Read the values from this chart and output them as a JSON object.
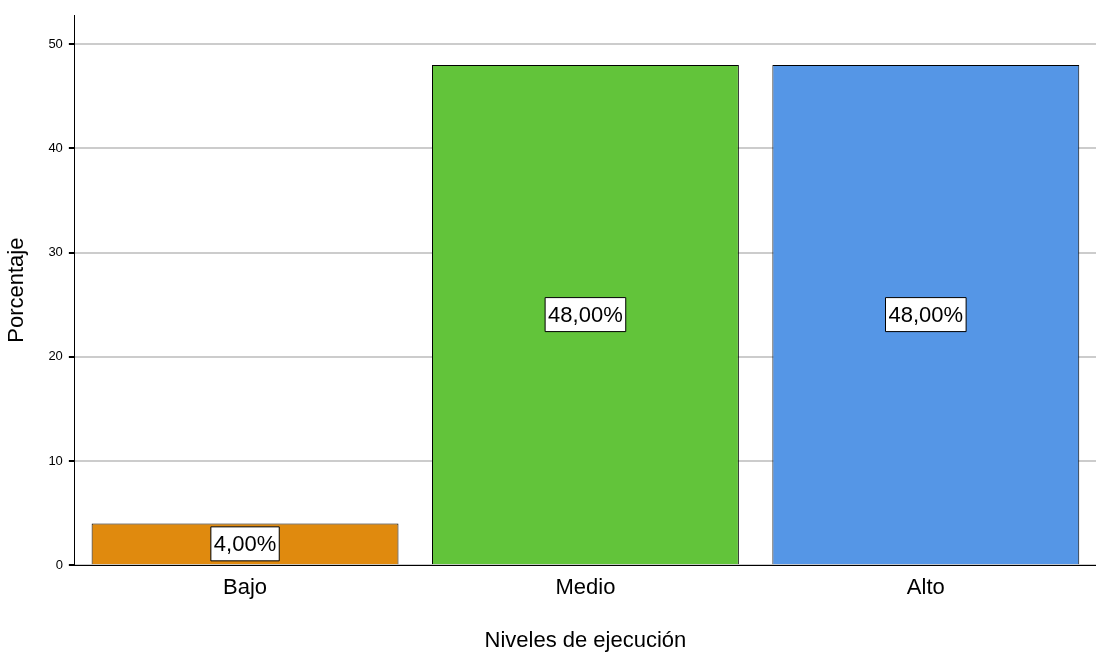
{
  "chart_data": {
    "type": "bar",
    "xlabel": "Niveles de ejecución",
    "ylabel": "Porcentaje",
    "categories": [
      "Bajo",
      "Medio",
      "Alto"
    ],
    "values": [
      4,
      48,
      48
    ],
    "colors": [
      "#e08a0e",
      "#62c43a",
      "#5596e6"
    ],
    "value_labels": [
      "4,00%",
      "48,00%",
      "48,00%"
    ],
    "ylim": [
      0,
      52.8
    ],
    "yticks": [
      0,
      10,
      20,
      30,
      40,
      50
    ],
    "grid": "y",
    "legend": false
  }
}
